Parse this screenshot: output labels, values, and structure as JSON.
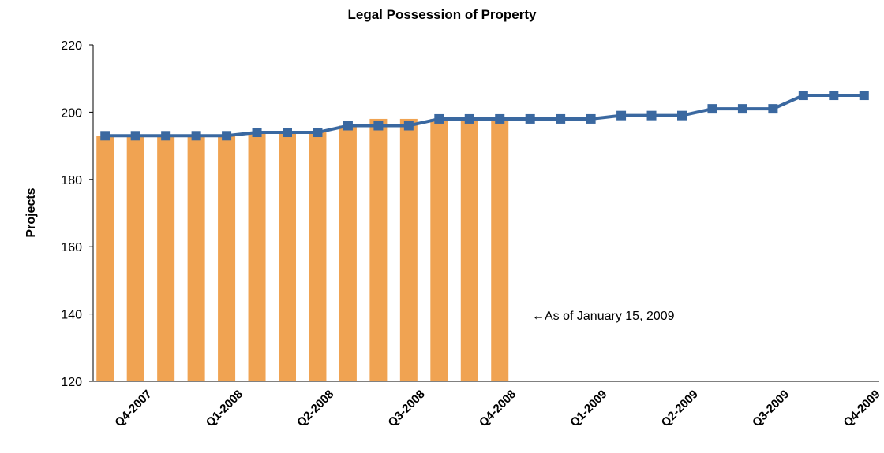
{
  "chart_data": {
    "type": "bar",
    "title": "Legal Possession of Property",
    "y_label": "Projects",
    "annotation": "←As of January 15, 2009",
    "categories": [
      null,
      "Q4-2007",
      null,
      null,
      "Q1-2008",
      null,
      null,
      "Q2-2008",
      null,
      null,
      "Q3-2008",
      null,
      null,
      "Q4-2008",
      null,
      null,
      "Q1-2009",
      null,
      null,
      "Q2-2009",
      null,
      null,
      "Q3-2009",
      null,
      null,
      "Q4-2009"
    ],
    "series": [
      {
        "type": "bar",
        "color": "#f0a352",
        "values": [
          193,
          193,
          193,
          193,
          193,
          194,
          194,
          194,
          196,
          198,
          198,
          198,
          198,
          198,
          null,
          null,
          null,
          null,
          null,
          null,
          null,
          null,
          null,
          null,
          null,
          null
        ]
      },
      {
        "type": "line",
        "color": "#3a68a0",
        "values": [
          193,
          193,
          193,
          193,
          193,
          194,
          194,
          194,
          196,
          196,
          196,
          198,
          198,
          198,
          198,
          198,
          198,
          199,
          199,
          199,
          201,
          201,
          201,
          205,
          205,
          205
        ]
      }
    ],
    "ylim": [
      120,
      220
    ],
    "yticks": [
      120,
      140,
      160,
      180,
      200,
      220
    ],
    "grid": false
  }
}
